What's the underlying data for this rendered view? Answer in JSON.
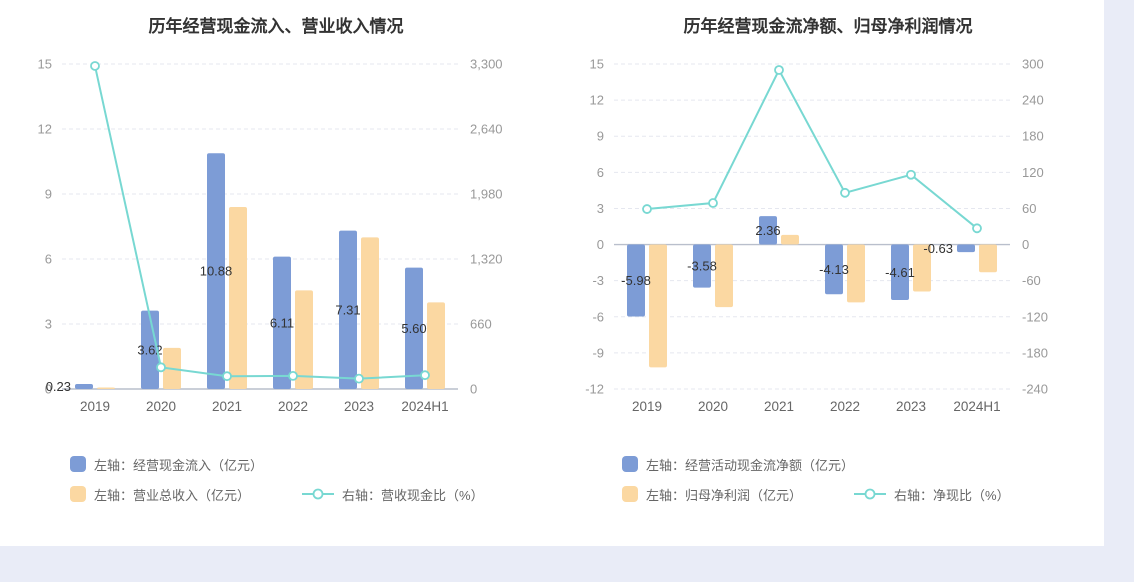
{
  "page": {
    "background": "#e9ecf7",
    "card_background": "#ffffff"
  },
  "colors": {
    "bar_blue": "#7d9cd6",
    "bar_orange": "#fbd8a2",
    "line_teal": "#78d8d2",
    "grid": "#e5e7ef",
    "zero_axis": "#b9bfcc",
    "tick_text": "#999999",
    "category_text": "#666666",
    "bar_label_text": "#333333",
    "title_text": "#333333",
    "legend_text": "#666666"
  },
  "chart_data": [
    {
      "type": "bar",
      "title": "历年经营现金流入、营业收入情况",
      "categories": [
        "2019",
        "2020",
        "2021",
        "2022",
        "2023",
        "2024H1"
      ],
      "left_axis": {
        "min": 0,
        "max": 15,
        "ticks": [
          0,
          3,
          6,
          9,
          12,
          15
        ],
        "tick_labels": [
          "0",
          "3",
          "6",
          "9",
          "12",
          "15"
        ]
      },
      "right_axis": {
        "min": 0,
        "max": 3300,
        "ticks": [
          0,
          660,
          1320,
          1980,
          2640,
          3300
        ],
        "tick_labels": [
          "0",
          "660",
          "1,320",
          "1,980",
          "2,640",
          "3,300"
        ]
      },
      "series": [
        {
          "name": "左轴：经营现金流入（亿元）",
          "type": "bar",
          "axis": "left",
          "color": "bar_blue",
          "values": [
            0.23,
            3.62,
            10.88,
            6.11,
            7.31,
            5.6
          ],
          "labels": [
            "0.23",
            "3.62",
            "10.88",
            "6.11",
            "7.31",
            "5.60"
          ]
        },
        {
          "name": "左轴：营业总收入（亿元）",
          "type": "bar",
          "axis": "left",
          "color": "bar_orange",
          "values": [
            0.01,
            1.9,
            8.4,
            4.55,
            7.0,
            4.0
          ]
        },
        {
          "name": "右轴：营收现金比（%）",
          "type": "line",
          "axis": "right",
          "color": "line_teal",
          "values": [
            3280,
            220,
            130,
            133,
            105,
            140
          ]
        }
      ]
    },
    {
      "type": "bar",
      "title": "历年经营现金流净额、归母净利润情况",
      "categories": [
        "2019",
        "2020",
        "2021",
        "2022",
        "2023",
        "2024H1"
      ],
      "left_axis": {
        "min": -12,
        "max": 15,
        "ticks": [
          -12,
          -9,
          -6,
          -3,
          0,
          3,
          6,
          9,
          12,
          15
        ],
        "tick_labels": [
          "-12",
          "-9",
          "-6",
          "-3",
          "0",
          "3",
          "6",
          "9",
          "12",
          "15"
        ]
      },
      "right_axis": {
        "min": -240,
        "max": 300,
        "ticks": [
          -240,
          -180,
          -120,
          -60,
          0,
          60,
          120,
          180,
          240,
          300
        ],
        "tick_labels": [
          "-240",
          "-180",
          "-120",
          "-60",
          "0",
          "60",
          "120",
          "180",
          "240",
          "300"
        ]
      },
      "series": [
        {
          "name": "左轴：经营活动现金流净额（亿元）",
          "type": "bar",
          "axis": "left",
          "color": "bar_blue",
          "values": [
            -5.98,
            -3.58,
            2.36,
            -4.13,
            -4.61,
            -0.63
          ],
          "labels": [
            "-5.98",
            "-3.58",
            "2.36",
            "-4.13",
            "-4.61",
            "-0.63"
          ]
        },
        {
          "name": "左轴：归母净利润（亿元）",
          "type": "bar",
          "axis": "left",
          "color": "bar_orange",
          "values": [
            -10.2,
            -5.2,
            0.8,
            -4.8,
            -3.9,
            -2.3
          ]
        },
        {
          "name": "右轴：净现比（%）",
          "type": "line",
          "axis": "right",
          "color": "line_teal",
          "values": [
            59,
            69,
            290,
            86,
            116,
            27
          ]
        }
      ]
    }
  ]
}
